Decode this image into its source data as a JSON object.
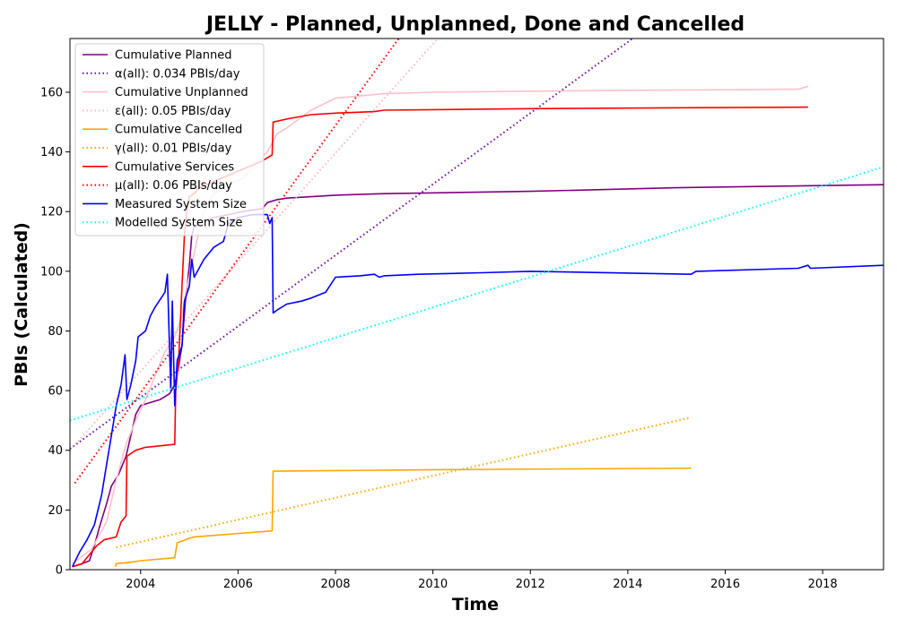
{
  "chart_data": {
    "type": "line",
    "title": "JELLY - Planned, Unplanned, Done  and Cancelled",
    "xlabel": "Time",
    "ylabel": "PBIs (Calculated)",
    "xlim": [
      2002.55,
      2019.25
    ],
    "ylim": [
      0,
      178
    ],
    "xticks": [
      2004,
      2006,
      2008,
      2010,
      2012,
      2014,
      2016,
      2018
    ],
    "yticks": [
      0,
      20,
      40,
      60,
      80,
      100,
      120,
      140,
      160
    ],
    "grid": false,
    "legend_position": "upper-left",
    "series": [
      {
        "name": "Cumulative Planned",
        "style": "solid",
        "color": "#800080",
        "points": [
          [
            2002.6,
            1
          ],
          [
            2002.8,
            2
          ],
          [
            2002.95,
            3
          ],
          [
            2003.05,
            8
          ],
          [
            2003.15,
            14
          ],
          [
            2003.3,
            22
          ],
          [
            2003.4,
            28
          ],
          [
            2003.55,
            32
          ],
          [
            2003.7,
            38
          ],
          [
            2003.8,
            45
          ],
          [
            2003.9,
            52
          ],
          [
            2004.0,
            55
          ],
          [
            2004.2,
            56
          ],
          [
            2004.4,
            57
          ],
          [
            2004.6,
            59
          ],
          [
            2004.7,
            62
          ],
          [
            2004.78,
            68
          ],
          [
            2004.85,
            75
          ],
          [
            2004.92,
            90
          ],
          [
            2005.0,
            102
          ],
          [
            2005.05,
            112
          ],
          [
            2005.1,
            115
          ],
          [
            2005.3,
            117
          ],
          [
            2005.5,
            118
          ],
          [
            2005.8,
            119
          ],
          [
            2006.1,
            120
          ],
          [
            2006.5,
            121
          ],
          [
            2006.6,
            123
          ],
          [
            2006.8,
            124
          ],
          [
            2007.0,
            124.5
          ],
          [
            2008.0,
            125.5
          ],
          [
            2009.0,
            126
          ],
          [
            2012.0,
            126.8
          ],
          [
            2015.0,
            128
          ],
          [
            2017.0,
            128.5
          ],
          [
            2019.25,
            129
          ]
        ]
      },
      {
        "name": "α(all): 0.034 PBIs/day",
        "style": "dotted",
        "color": "#6a0dad",
        "points": [
          [
            2002.55,
            40.5
          ],
          [
            2014.1,
            178
          ]
        ]
      },
      {
        "name": "Cumulative Unplanned",
        "style": "solid",
        "color": "#ffc0cb",
        "points": [
          [
            2002.6,
            2
          ],
          [
            2003.0,
            7
          ],
          [
            2003.3,
            16
          ],
          [
            2003.5,
            30
          ],
          [
            2003.7,
            42
          ],
          [
            2003.9,
            50
          ],
          [
            2004.1,
            57
          ],
          [
            2004.3,
            65
          ],
          [
            2004.5,
            73
          ],
          [
            2004.7,
            78
          ],
          [
            2004.85,
            85
          ],
          [
            2004.95,
            95
          ],
          [
            2005.05,
            102
          ],
          [
            2005.15,
            110
          ],
          [
            2005.3,
            120
          ],
          [
            2005.5,
            126
          ],
          [
            2005.8,
            129
          ],
          [
            2006.1,
            131
          ],
          [
            2006.3,
            135
          ],
          [
            2006.6,
            140
          ],
          [
            2006.8,
            146
          ],
          [
            2007.0,
            148
          ],
          [
            2007.5,
            154
          ],
          [
            2008.0,
            158
          ],
          [
            2009.0,
            159.5
          ],
          [
            2010.0,
            160
          ],
          [
            2013.0,
            160.5
          ],
          [
            2017.5,
            161
          ],
          [
            2017.7,
            162
          ]
        ]
      },
      {
        "name": "ε(all): 0.05 PBIs/day",
        "style": "dotted",
        "color": "#ffb6c1",
        "points": [
          [
            2002.55,
            40
          ],
          [
            2010.1,
            178
          ]
        ]
      },
      {
        "name": "Cumulative Cancelled",
        "style": "solid",
        "color": "#ffa500",
        "points": [
          [
            2003.48,
            1
          ],
          [
            2003.5,
            2
          ],
          [
            2003.8,
            2.5
          ],
          [
            2004.0,
            3
          ],
          [
            2004.7,
            4
          ],
          [
            2004.75,
            9
          ],
          [
            2005.0,
            10.5
          ],
          [
            2005.1,
            11
          ],
          [
            2006.7,
            13
          ],
          [
            2006.72,
            33
          ],
          [
            2010.0,
            33.5
          ],
          [
            2015.3,
            34
          ]
        ]
      },
      {
        "name": "γ(all): 0.01 PBIs/day",
        "style": "dotted",
        "color": "#ffa500",
        "points": [
          [
            2003.5,
            7.5
          ],
          [
            2015.3,
            51
          ]
        ]
      },
      {
        "name": "Cumulative Services",
        "style": "solid",
        "color": "#ff0000",
        "points": [
          [
            2002.6,
            1
          ],
          [
            2002.8,
            2
          ],
          [
            2002.95,
            5
          ],
          [
            2003.1,
            8
          ],
          [
            2003.25,
            10
          ],
          [
            2003.5,
            11
          ],
          [
            2003.6,
            16
          ],
          [
            2003.7,
            18
          ],
          [
            2003.72,
            38
          ],
          [
            2003.9,
            40
          ],
          [
            2004.1,
            41
          ],
          [
            2004.7,
            42
          ],
          [
            2004.72,
            60
          ],
          [
            2004.78,
            70
          ],
          [
            2004.85,
            95
          ],
          [
            2004.9,
            112
          ],
          [
            2004.95,
            120
          ],
          [
            2005.0,
            125
          ],
          [
            2005.1,
            126
          ],
          [
            2005.2,
            128
          ],
          [
            2006.5,
            137
          ],
          [
            2006.7,
            139
          ],
          [
            2006.72,
            150
          ],
          [
            2007.0,
            151
          ],
          [
            2007.5,
            152.5
          ],
          [
            2008.0,
            153
          ],
          [
            2008.8,
            153.5
          ],
          [
            2009.0,
            154
          ],
          [
            2012.0,
            154.5
          ],
          [
            2017.7,
            155
          ]
        ]
      },
      {
        "name": "μ(all): 0.06 PBIs/day",
        "style": "dotted",
        "color": "#ff0000",
        "points": [
          [
            2002.65,
            29
          ],
          [
            2009.3,
            178
          ]
        ]
      },
      {
        "name": "Measured System Size",
        "style": "solid",
        "color": "#0000ff",
        "points": [
          [
            2002.6,
            1
          ],
          [
            2002.75,
            6
          ],
          [
            2002.9,
            10
          ],
          [
            2003.05,
            15
          ],
          [
            2003.2,
            25
          ],
          [
            2003.3,
            35
          ],
          [
            2003.4,
            45
          ],
          [
            2003.5,
            55
          ],
          [
            2003.6,
            62
          ],
          [
            2003.68,
            72
          ],
          [
            2003.72,
            57
          ],
          [
            2003.8,
            62
          ],
          [
            2003.9,
            70
          ],
          [
            2003.95,
            78
          ],
          [
            2004.1,
            80
          ],
          [
            2004.2,
            85
          ],
          [
            2004.3,
            88
          ],
          [
            2004.5,
            93
          ],
          [
            2004.55,
            99
          ],
          [
            2004.62,
            60
          ],
          [
            2004.65,
            90
          ],
          [
            2004.7,
            55
          ],
          [
            2004.75,
            70
          ],
          [
            2004.85,
            75
          ],
          [
            2004.9,
            90
          ],
          [
            2005.0,
            95
          ],
          [
            2005.05,
            104
          ],
          [
            2005.1,
            98
          ],
          [
            2005.3,
            104
          ],
          [
            2005.5,
            108
          ],
          [
            2005.7,
            110
          ],
          [
            2005.8,
            116
          ],
          [
            2006.0,
            118
          ],
          [
            2006.3,
            119
          ],
          [
            2006.6,
            119
          ],
          [
            2006.65,
            116
          ],
          [
            2006.7,
            118
          ],
          [
            2006.72,
            86
          ],
          [
            2006.8,
            87
          ],
          [
            2007.0,
            89
          ],
          [
            2007.3,
            90
          ],
          [
            2007.5,
            91
          ],
          [
            2007.8,
            93
          ],
          [
            2008.0,
            98
          ],
          [
            2008.5,
            98.5
          ],
          [
            2008.8,
            99
          ],
          [
            2008.9,
            98
          ],
          [
            2009.0,
            98.5
          ],
          [
            2009.7,
            99
          ],
          [
            2011.0,
            99.5
          ],
          [
            2012.0,
            100
          ],
          [
            2015.3,
            99
          ],
          [
            2015.4,
            100
          ],
          [
            2017.5,
            101
          ],
          [
            2017.7,
            102
          ],
          [
            2017.75,
            101
          ],
          [
            2019.25,
            102
          ]
        ]
      },
      {
        "name": "Modelled System Size",
        "style": "dotted",
        "color": "#00ffff",
        "points": [
          [
            2002.55,
            50
          ],
          [
            2019.25,
            135
          ]
        ]
      }
    ]
  }
}
